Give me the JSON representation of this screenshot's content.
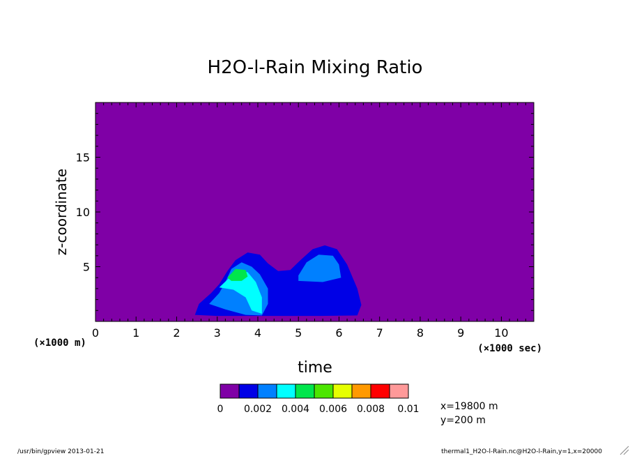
{
  "chart_data": {
    "type": "heatmap",
    "title": "H2O-l-Rain Mixing Ratio",
    "xlabel": "time",
    "xunits": "(×1000 sec)",
    "ylabel": "z-coordinate",
    "yunits": "(×1000 m)",
    "xlim": [
      0,
      10.8
    ],
    "ylim": [
      0,
      20
    ],
    "xticks": [
      "0",
      "1",
      "2",
      "3",
      "4",
      "5",
      "6",
      "7",
      "8",
      "9",
      "10"
    ],
    "yticks": [
      "5",
      "10",
      "15"
    ],
    "colorbar": {
      "levels": [
        0,
        0.001,
        0.002,
        0.003,
        0.004,
        0.005,
        0.006,
        0.007,
        0.008,
        0.009,
        0.01
      ],
      "labels": [
        "0",
        "0.002",
        "0.004",
        "0.006",
        "0.008",
        "0.01"
      ],
      "colors": [
        "#7f00a6",
        "#0000e6",
        "#0080ff",
        "#00ffff",
        "#00e64c",
        "#4ce600",
        "#e6ff00",
        "#ff9900",
        "#ff0000",
        "#ff9999"
      ]
    },
    "cells": [
      {
        "level": 1,
        "name": "rain-region-low",
        "points": [
          [
            2.45,
            0.6
          ],
          [
            2.55,
            1.6
          ],
          [
            2.85,
            2.6
          ],
          [
            3.05,
            3.4
          ],
          [
            3.25,
            4.6
          ],
          [
            3.45,
            5.6
          ],
          [
            3.75,
            6.3
          ],
          [
            4.05,
            6.1
          ],
          [
            4.25,
            5.3
          ],
          [
            4.5,
            4.6
          ],
          [
            4.8,
            4.7
          ],
          [
            5.05,
            5.6
          ],
          [
            5.35,
            6.6
          ],
          [
            5.65,
            6.95
          ],
          [
            5.95,
            6.6
          ],
          [
            6.2,
            5.2
          ],
          [
            6.45,
            3.0
          ],
          [
            6.55,
            1.5
          ],
          [
            6.45,
            0.55
          ],
          [
            5.5,
            0.5
          ],
          [
            4.0,
            0.5
          ],
          [
            3.0,
            0.5
          ]
        ]
      },
      {
        "level": 2,
        "name": "rain-region-moderate-left",
        "points": [
          [
            2.8,
            1.6
          ],
          [
            3.05,
            2.6
          ],
          [
            3.2,
            3.6
          ],
          [
            3.35,
            4.8
          ],
          [
            3.6,
            5.4
          ],
          [
            3.85,
            5.0
          ],
          [
            4.05,
            4.3
          ],
          [
            4.25,
            3.0
          ],
          [
            4.25,
            1.6
          ],
          [
            4.1,
            0.55
          ],
          [
            3.7,
            0.6
          ],
          [
            3.2,
            1.1
          ]
        ]
      },
      {
        "level": 2,
        "name": "rain-region-moderate-right",
        "points": [
          [
            5.0,
            4.2
          ],
          [
            5.2,
            5.4
          ],
          [
            5.5,
            6.1
          ],
          [
            5.85,
            6.0
          ],
          [
            6.0,
            5.2
          ],
          [
            6.05,
            4.0
          ],
          [
            5.6,
            3.6
          ],
          [
            5.0,
            3.7
          ]
        ]
      },
      {
        "level": 3,
        "name": "rain-region-high",
        "points": [
          [
            3.05,
            3.1
          ],
          [
            3.3,
            4.0
          ],
          [
            3.5,
            4.7
          ],
          [
            3.75,
            4.5
          ],
          [
            3.95,
            3.6
          ],
          [
            4.1,
            2.2
          ],
          [
            4.1,
            0.7
          ],
          [
            3.85,
            1.0
          ],
          [
            3.7,
            2.2
          ],
          [
            3.4,
            2.9
          ]
        ]
      },
      {
        "level": 4,
        "name": "rain-region-peak",
        "points": [
          [
            3.25,
            4.0
          ],
          [
            3.45,
            4.8
          ],
          [
            3.7,
            4.7
          ],
          [
            3.75,
            4.1
          ],
          [
            3.6,
            3.7
          ],
          [
            3.35,
            3.7
          ]
        ]
      }
    ],
    "annotations": [
      "x=19800 m",
      "y=200 m"
    ],
    "footer_left": "/usr/bin/gpview  2013-01-21",
    "footer_right": "thermal1_H2O-l-Rain.nc@H2O-l-Rain,y=1,x=20000"
  }
}
